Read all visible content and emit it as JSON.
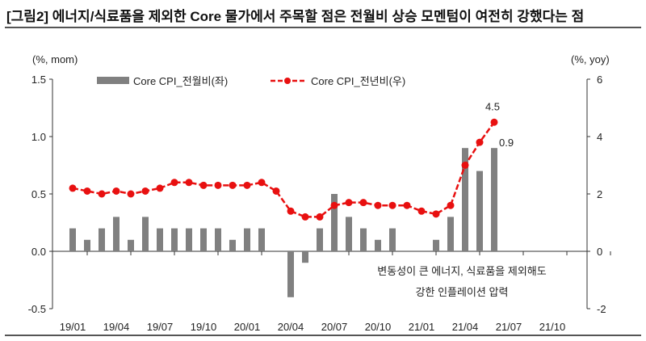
{
  "title": "[그림2] 에너지/식료품을 제외한 Core 물가에서 주목할 점은 전월비 상승 모멘텀이 여전히 강했다는 점",
  "chart_data": {
    "type": "bar+line",
    "left_unit": "(%, mom)",
    "right_unit": "(%, yoy)",
    "left_ylim": [
      -0.5,
      1.5
    ],
    "left_ticks": [
      "1.5",
      "1.0",
      "0.5",
      "0.0",
      "-0.5"
    ],
    "right_ylim": [
      -2,
      6
    ],
    "right_ticks": [
      "6",
      "4",
      "2",
      "0",
      "-2"
    ],
    "x_ticks": [
      "19/01",
      "19/04",
      "19/07",
      "19/10",
      "20/01",
      "20/04",
      "20/07",
      "20/10",
      "21/01",
      "21/04",
      "21/07",
      "21/10"
    ],
    "series": [
      {
        "name": "Core CPI_전월비(좌)",
        "type": "bar",
        "axis": "left",
        "color": "#808080",
        "values": [
          0.2,
          0.1,
          0.2,
          0.3,
          0.1,
          0.3,
          0.2,
          0.2,
          0.2,
          0.2,
          0.2,
          0.1,
          0.2,
          0.2,
          0,
          -0.4,
          -0.1,
          0.2,
          0.5,
          0.3,
          0.2,
          0.1,
          0.2,
          0,
          0,
          0.1,
          0.3,
          0.9,
          0.7,
          0.9
        ]
      },
      {
        "name": "Core CPI_전년비(우)",
        "type": "line",
        "axis": "right",
        "color": "#e81010",
        "values": [
          2.2,
          2.1,
          2.0,
          2.1,
          2.0,
          2.1,
          2.2,
          2.4,
          2.4,
          2.3,
          2.3,
          2.3,
          2.3,
          2.4,
          2.1,
          1.4,
          1.2,
          1.2,
          1.6,
          1.7,
          1.7,
          1.6,
          1.6,
          1.6,
          1.4,
          1.3,
          1.6,
          3.0,
          3.8,
          4.5
        ]
      }
    ],
    "data_labels": {
      "line_last": "4.5",
      "bar_last": "0.9"
    },
    "annotation": [
      "변동성이 큰 에너지, 식료품을 제외해도",
      "강한 인플레이션 압력"
    ]
  }
}
